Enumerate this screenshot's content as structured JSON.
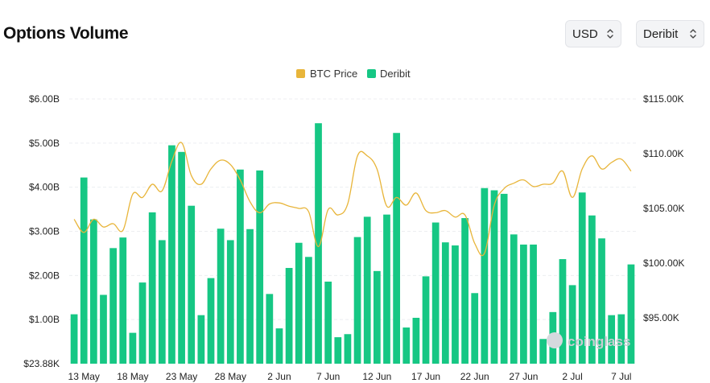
{
  "header": {
    "title": "Options Volume",
    "currency_select": "USD",
    "exchange_select": "Deribit"
  },
  "watermark": "coinglass",
  "colors": {
    "bar": "#16c784",
    "price_line": "#e8b53a",
    "grid": "#eceef1"
  },
  "chart_data": {
    "type": "bar",
    "legend": [
      "BTC Price",
      "Deribit"
    ],
    "legend_position": "top-center",
    "grid": true,
    "x": [
      "12 May",
      "13 May",
      "14 May",
      "15 May",
      "16 May",
      "17 May",
      "18 May",
      "19 May",
      "20 May",
      "21 May",
      "22 May",
      "23 May",
      "24 May",
      "25 May",
      "26 May",
      "27 May",
      "28 May",
      "29 May",
      "30 May",
      "31 May",
      "1 Jun",
      "2 Jun",
      "3 Jun",
      "4 Jun",
      "5 Jun",
      "6 Jun",
      "7 Jun",
      "8 Jun",
      "9 Jun",
      "10 Jun",
      "11 Jun",
      "12 Jun",
      "13 Jun",
      "14 Jun",
      "15 Jun",
      "16 Jun",
      "17 Jun",
      "18 Jun",
      "19 Jun",
      "20 Jun",
      "21 Jun",
      "22 Jun",
      "23 Jun",
      "24 Jun",
      "25 Jun",
      "26 Jun",
      "27 Jun",
      "28 Jun",
      "29 Jun",
      "30 Jun",
      "1 Jul",
      "2 Jul",
      "3 Jul",
      "4 Jul",
      "5 Jul",
      "6 Jul",
      "7 Jul",
      "8 Jul"
    ],
    "x_tick_labels": [
      "13 May",
      "18 May",
      "23 May",
      "28 May",
      "2 Jun",
      "7 Jun",
      "12 Jun",
      "17 Jun",
      "22 Jun",
      "27 Jun",
      "2 Jul",
      "7 Jul"
    ],
    "y_left": {
      "ticks": [
        "$23.88K",
        "$1.00B",
        "$2.00B",
        "$3.00B",
        "$4.00B",
        "$5.00B",
        "$6.00B"
      ],
      "range": [
        0,
        6
      ]
    },
    "y_right": {
      "ticks": [
        "$95.00K",
        "$100.00K",
        "$105.00K",
        "$110.00K",
        "$115.00K"
      ],
      "range": [
        90800,
        115000
      ]
    },
    "series": [
      {
        "name": "Deribit",
        "axis": "left",
        "type": "bar",
        "values": [
          1.12,
          4.22,
          3.27,
          1.56,
          2.62,
          2.86,
          0.7,
          1.84,
          3.43,
          2.8,
          4.95,
          4.8,
          3.58,
          1.1,
          1.94,
          3.06,
          2.8,
          4.4,
          3.05,
          4.38,
          1.58,
          0.8,
          2.17,
          2.74,
          2.42,
          5.45,
          1.86,
          0.6,
          0.67,
          2.87,
          3.33,
          2.1,
          3.38,
          5.23,
          0.82,
          1.04,
          1.98,
          3.2,
          2.75,
          2.68,
          3.3,
          1.6,
          3.98,
          3.93,
          3.85,
          2.93,
          2.7,
          2.7,
          0.56,
          1.17,
          2.37,
          1.78,
          3.88,
          3.36,
          2.84,
          1.1,
          1.12,
          2.25
        ]
      },
      {
        "name": "BTC Price",
        "axis": "right",
        "type": "line",
        "values": [
          104000,
          102800,
          104000,
          103300,
          103600,
          103000,
          106300,
          106000,
          107200,
          106600,
          109300,
          111000,
          108000,
          107200,
          108600,
          109400,
          109000,
          107600,
          105600,
          104600,
          105400,
          105500,
          105200,
          105000,
          104700,
          101500,
          104900,
          104400,
          105400,
          109800,
          109800,
          108600,
          105200,
          106000,
          105300,
          106400,
          104800,
          104600,
          104800,
          104200,
          104400,
          101800,
          100900,
          105300,
          106800,
          107300,
          107600,
          107000,
          107200,
          107300,
          108400,
          106000,
          108600,
          109800,
          108600,
          109200,
          109500,
          108400
        ]
      }
    ]
  }
}
